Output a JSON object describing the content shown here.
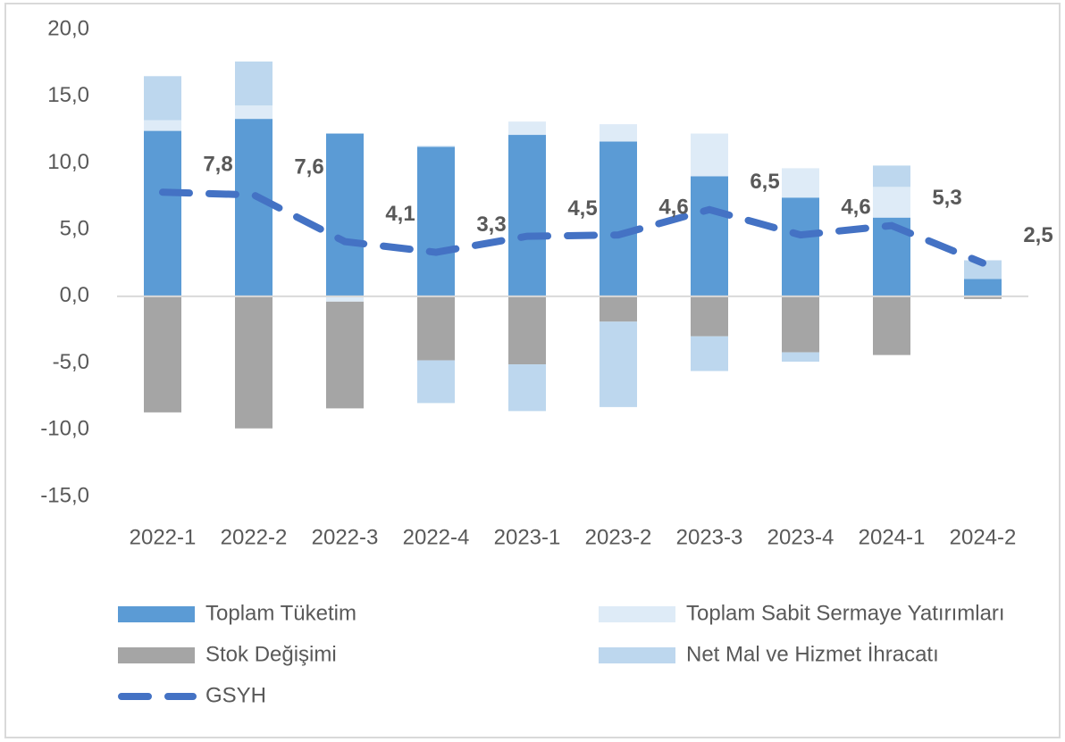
{
  "chart_data": {
    "type": "bar",
    "categories": [
      "2022-1",
      "2022-2",
      "2022-3",
      "2022-4",
      "2023-1",
      "2023-2",
      "2023-3",
      "2023-4",
      "2024-1",
      "2024-2"
    ],
    "series": [
      {
        "name": "Toplam Tüketim",
        "color": "#5b9bd5",
        "values": [
          12.4,
          13.3,
          12.2,
          11.2,
          12.1,
          11.6,
          9.0,
          7.4,
          5.9,
          1.3
        ]
      },
      {
        "name": "Toplam Sabit Sermaye Yatırımları",
        "color": "#deebf7",
        "values": [
          0.8,
          1.0,
          -0.4,
          0.1,
          1.0,
          1.3,
          3.2,
          2.2,
          2.3,
          0
        ]
      },
      {
        "name": "Stok Değişimi",
        "color": "#a5a5a5",
        "values": [
          -8.7,
          -9.9,
          -8.0,
          -4.8,
          -5.1,
          -1.9,
          -3.0,
          -4.2,
          -4.4,
          -0.2
        ]
      },
      {
        "name": "Net Mal ve Hizmet İhracatı",
        "color": "#bdd7ee",
        "values": [
          3.3,
          3.3,
          0,
          -3.2,
          -3.5,
          -6.4,
          -2.6,
          -0.7,
          1.6,
          1.4
        ]
      },
      {
        "name": "GSYH",
        "type": "line",
        "color": "#4472c4",
        "values": [
          7.8,
          7.6,
          4.1,
          3.3,
          4.5,
          4.6,
          6.5,
          4.6,
          5.3,
          2.5
        ],
        "value_labels": [
          "7,8",
          "7,6",
          "4,1",
          "3,3",
          "4,5",
          "4,6",
          "6,5",
          "4,6",
          "5,3",
          "2,5"
        ]
      }
    ],
    "ylim": [
      -15,
      20
    ],
    "yticks": [
      {
        "value": -15,
        "label": "-15,0"
      },
      {
        "value": -10,
        "label": "-10,0"
      },
      {
        "value": -5,
        "label": "-5,0"
      },
      {
        "value": 0,
        "label": "0,0"
      },
      {
        "value": 5,
        "label": "5,0"
      },
      {
        "value": 10,
        "label": "10,0"
      },
      {
        "value": 15,
        "label": "15,0"
      },
      {
        "value": 20,
        "label": "20,0"
      }
    ],
    "grid": false
  }
}
